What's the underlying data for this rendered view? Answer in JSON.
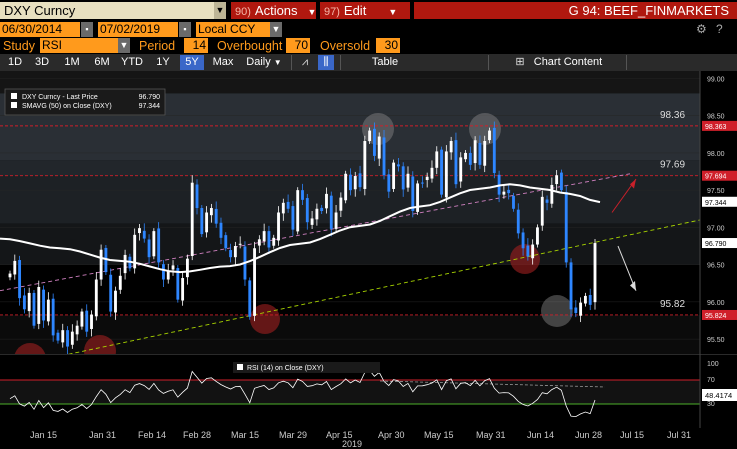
{
  "header": {
    "security": "DXY Curncy",
    "actions_num": "90)",
    "actions_label": "Actions",
    "edit_num": "97)",
    "edit_label": "Edit",
    "page_title": "G 94: BEEF_FINMARKETS"
  },
  "dates": {
    "start": "06/30/2014",
    "end": "07/02/2019",
    "currency": "Local CCY"
  },
  "study": {
    "study_label": "Study",
    "study_value": "RSI",
    "period_label": "Period",
    "period_value": "14",
    "overbought_label": "Overbought",
    "overbought_value": "70",
    "oversold_label": "Oversold",
    "oversold_value": "30"
  },
  "toolbar": {
    "ranges": [
      "1D",
      "3D",
      "1M",
      "6M",
      "YTD",
      "1Y",
      "5Y",
      "Max"
    ],
    "active_range": "5Y",
    "period": "Daily",
    "table_label": "Table",
    "chart_content_label": "Chart Content"
  },
  "legend": {
    "last_price": "DXY Curncy - Last Price",
    "last_price_value": "96.790",
    "smavg": "SMAVG (50) on Close (DXY)",
    "smavg_value": "97.344",
    "rsi": "RSI (14) on Close (DXY)",
    "rsi_value": "48.4174"
  },
  "colors": {
    "up": "#ffffff",
    "down": "#2e86ff",
    "sma": "#ffffff",
    "resistance": "#d01f2a",
    "support_line": "#a8d400",
    "trend_line": "#d080c0",
    "accent_orange": "#ff9a1c",
    "menu_red": "#b0180f"
  },
  "chart_data": {
    "type": "candlestick",
    "ylim": [
      95.3,
      99.1
    ],
    "y_ticks": [
      95.5,
      96.0,
      96.5,
      97.0,
      97.5,
      98.0,
      98.5,
      99.0
    ],
    "x_ticks": [
      "Jan 15",
      "Jan 31",
      "Feb 14",
      "Feb 28",
      "Mar 15",
      "Mar 29",
      "Apr 15",
      "Apr 30",
      "May 15",
      "May 31",
      "Jun 14",
      "Jun 28",
      "Jul 15",
      "Jul 31"
    ],
    "x_year": "2019",
    "horizontal_levels": [
      {
        "value": 98.363,
        "label": "98.36",
        "tag": "98.363"
      },
      {
        "value": 97.694,
        "label": "97.69",
        "tag": "97.694"
      },
      {
        "value": 95.824,
        "label": "95.82",
        "tag": "95.824"
      }
    ],
    "right_tags": [
      {
        "value": 97.344,
        "label": "97.344"
      },
      {
        "value": 96.79,
        "label": "96.790"
      }
    ],
    "close": [
      96.38,
      96.55,
      96.05,
      95.9,
      96.12,
      95.68,
      96.2,
      95.75,
      96.03,
      95.55,
      95.48,
      95.62,
      95.4,
      95.6,
      95.68,
      95.87,
      95.6,
      95.83,
      96.3,
      96.7,
      96.4,
      95.87,
      96.15,
      96.35,
      96.63,
      96.45,
      96.9,
      96.99,
      96.85,
      96.6,
      96.95,
      96.53,
      96.3,
      96.41,
      96.49,
      96.03,
      96.32,
      96.58,
      97.6,
      97.26,
      96.91,
      97.2,
      97.26,
      97.05,
      96.86,
      96.72,
      96.6,
      96.75,
      96.78,
      96.3,
      95.8,
      96.72,
      96.84,
      96.95,
      96.73,
      96.86,
      97.2,
      97.33,
      97.25,
      96.97,
      97.5,
      97.37,
      97.07,
      97.12,
      97.25,
      97.22,
      97.45,
      96.98,
      97.2,
      97.4,
      97.72,
      97.5,
      97.69,
      97.54,
      98.16,
      98.3,
      97.96,
      98.22,
      97.7,
      97.48,
      97.87,
      97.82,
      97.51,
      97.72,
      97.22,
      97.59,
      97.6,
      97.68,
      97.8,
      98.02,
      97.44,
      98.02,
      98.16,
      97.58,
      97.94,
      98.0,
      97.84,
      98.17,
      97.84,
      98.16,
      98.3,
      97.73,
      97.44,
      97.48,
      97.46,
      97.25,
      96.92,
      96.72,
      96.61,
      96.77,
      97.0,
      97.41,
      97.33,
      97.57,
      97.7,
      97.5,
      96.53,
      95.9,
      95.85,
      95.99,
      96.08,
      95.96,
      96.79
    ]
  }
}
